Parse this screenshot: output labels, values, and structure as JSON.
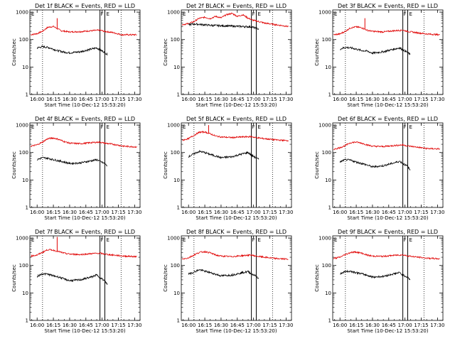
{
  "colors": {
    "events": "#000000",
    "lld": "#e00000",
    "frame": "#000000",
    "background": "#ffffff"
  },
  "shared": {
    "xlabel": "Start Time (10-Dec-12 15:53:20)",
    "ylabel": "Counts/sec",
    "x_ticks": [
      "16:00",
      "16:15",
      "16:30",
      "16:45",
      "17:00",
      "17:15",
      "17:30"
    ],
    "x_tick_minutes": [
      0,
      15,
      30,
      45,
      60,
      75,
      90
    ],
    "y_ticks": [
      "1",
      "10",
      "100",
      "1000"
    ],
    "y_tick_values": [
      1,
      10,
      100,
      1000
    ],
    "xlim_minutes": [
      -6.7,
      95
    ],
    "ylim": [
      1,
      1200
    ],
    "yscale": "log",
    "flag_labels": {
      "e": "E",
      "f": "F"
    }
  },
  "chart_data": [
    {
      "type": "line",
      "title": "Det 1f BLACK = Events, RED = LLD",
      "dotted_at": [
        5,
        77.5
      ],
      "band": [
        58,
        62.5
      ],
      "series": [
        {
          "key": "lld",
          "x": [
            -6,
            0,
            5,
            10,
            15,
            18,
            22,
            30,
            40,
            50,
            58,
            62,
            70,
            78,
            85,
            92
          ],
          "y": [
            150,
            165,
            200,
            280,
            300,
            260,
            210,
            190,
            195,
            210,
            220,
            200,
            180,
            150,
            150,
            150
          ]
        },
        {
          "key": "events",
          "x": [
            0,
            5,
            10,
            15,
            18,
            25,
            30,
            40,
            50,
            55,
            58,
            62,
            65
          ],
          "y": [
            50,
            55,
            52,
            45,
            40,
            35,
            33,
            36,
            45,
            50,
            42,
            35,
            28
          ]
        }
      ],
      "spikes": [
        {
          "series": "lld",
          "x": 18.5,
          "y": 600
        }
      ]
    },
    {
      "type": "line",
      "title": "Det 2f BLACK = Events, RED = LLD",
      "dotted_at": [
        5,
        77.5
      ],
      "band": [
        58,
        62.5
      ],
      "series": [
        {
          "key": "lld",
          "x": [
            -6,
            0,
            5,
            10,
            15,
            20,
            25,
            30,
            35,
            40,
            45,
            50,
            55,
            60,
            70,
            80,
            92
          ],
          "y": [
            350,
            380,
            450,
            600,
            650,
            580,
            700,
            620,
            800,
            900,
            700,
            800,
            600,
            500,
            400,
            350,
            300
          ]
        },
        {
          "key": "events",
          "x": [
            0,
            5,
            10,
            20,
            30,
            40,
            50,
            58,
            62,
            65
          ],
          "y": [
            350,
            370,
            360,
            330,
            320,
            310,
            300,
            290,
            260,
            240
          ]
        }
      ],
      "spikes": []
    },
    {
      "type": "line",
      "title": "Det 3f BLACK = Events, RED = LLD",
      "dotted_at": [
        5,
        77.5
      ],
      "band": [
        58,
        62.5
      ],
      "series": [
        {
          "key": "lld",
          "x": [
            -6,
            0,
            5,
            10,
            15,
            20,
            25,
            30,
            40,
            50,
            58,
            62,
            70,
            80,
            92
          ],
          "y": [
            150,
            160,
            200,
            270,
            290,
            270,
            220,
            200,
            190,
            210,
            220,
            200,
            180,
            160,
            150
          ]
        },
        {
          "key": "events",
          "x": [
            0,
            5,
            10,
            15,
            20,
            25,
            30,
            40,
            50,
            55,
            58,
            62,
            65
          ],
          "y": [
            45,
            52,
            50,
            45,
            40,
            38,
            32,
            36,
            45,
            50,
            42,
            35,
            28
          ]
        }
      ],
      "spikes": [
        {
          "series": "lld",
          "x": 23,
          "y": 600
        }
      ]
    },
    {
      "type": "line",
      "title": "Det 4f BLACK = Events, RED = LLD",
      "dotted_at": [
        5,
        77.5
      ],
      "band": [
        58,
        62.5
      ],
      "series": [
        {
          "key": "lld",
          "x": [
            -6,
            0,
            5,
            10,
            15,
            20,
            25,
            30,
            40,
            50,
            58,
            62,
            70,
            80,
            92
          ],
          "y": [
            170,
            190,
            240,
            320,
            340,
            300,
            250,
            220,
            210,
            230,
            240,
            220,
            200,
            170,
            160
          ]
        },
        {
          "key": "events",
          "x": [
            0,
            5,
            10,
            15,
            20,
            25,
            30,
            40,
            50,
            55,
            58,
            62,
            65
          ],
          "y": [
            55,
            65,
            62,
            55,
            50,
            45,
            40,
            42,
            50,
            55,
            48,
            40,
            32
          ]
        }
      ],
      "spikes": []
    },
    {
      "type": "line",
      "title": "Det 5f BLACK = Events, RED = LLD",
      "dotted_at": [
        5,
        77.5
      ],
      "band": [
        58,
        62.5
      ],
      "series": [
        {
          "key": "lld",
          "x": [
            -6,
            0,
            5,
            10,
            15,
            20,
            25,
            30,
            40,
            50,
            58,
            62,
            70,
            80,
            92
          ],
          "y": [
            280,
            320,
            420,
            550,
            560,
            480,
            400,
            370,
            350,
            370,
            380,
            350,
            320,
            290,
            270
          ]
        },
        {
          "key": "events",
          "x": [
            0,
            5,
            10,
            15,
            20,
            25,
            30,
            40,
            50,
            55,
            58,
            62,
            65
          ],
          "y": [
            70,
            90,
            110,
            100,
            85,
            75,
            65,
            70,
            90,
            100,
            80,
            65,
            55
          ]
        }
      ],
      "spikes": [
        {
          "series": "lld",
          "x": 18.5,
          "y": 1000
        }
      ]
    },
    {
      "type": "line",
      "title": "Det 6f BLACK = Events, RED = LLD",
      "dotted_at": [
        5,
        77.5
      ],
      "band": [
        58,
        62.5
      ],
      "series": [
        {
          "key": "lld",
          "x": [
            -6,
            0,
            5,
            10,
            15,
            20,
            25,
            30,
            40,
            50,
            58,
            62,
            70,
            80,
            92
          ],
          "y": [
            130,
            150,
            180,
            230,
            240,
            220,
            190,
            170,
            165,
            180,
            190,
            175,
            160,
            140,
            135
          ]
        },
        {
          "key": "events",
          "x": [
            0,
            5,
            10,
            15,
            20,
            25,
            30,
            40,
            50,
            55,
            58,
            62,
            65
          ],
          "y": [
            45,
            55,
            52,
            45,
            40,
            35,
            30,
            33,
            42,
            48,
            40,
            32,
            22
          ]
        }
      ],
      "spikes": []
    },
    {
      "type": "line",
      "title": "Det 7f BLACK = Events, RED = LLD",
      "dotted_at": [
        5,
        77.5
      ],
      "band": [
        58,
        62.5
      ],
      "series": [
        {
          "key": "lld",
          "x": [
            -6,
            0,
            5,
            10,
            15,
            20,
            25,
            30,
            40,
            50,
            58,
            62,
            70,
            80,
            92
          ],
          "y": [
            220,
            240,
            300,
            380,
            360,
            320,
            280,
            260,
            250,
            270,
            280,
            260,
            240,
            220,
            210
          ]
        },
        {
          "key": "events",
          "x": [
            0,
            5,
            10,
            15,
            20,
            25,
            30,
            40,
            50,
            55,
            58,
            62,
            65
          ],
          "y": [
            40,
            50,
            48,
            42,
            38,
            32,
            28,
            30,
            38,
            45,
            36,
            28,
            20
          ]
        }
      ],
      "spikes": [
        {
          "series": "lld",
          "x": 18.5,
          "y": 1100
        }
      ]
    },
    {
      "type": "line",
      "title": "Det 8f BLACK = Events, RED = LLD",
      "dotted_at": [
        5,
        77.5
      ],
      "band": [
        58,
        62.5
      ],
      "series": [
        {
          "key": "lld",
          "x": [
            -6,
            0,
            5,
            10,
            15,
            20,
            25,
            30,
            40,
            50,
            58,
            62,
            70,
            80,
            92
          ],
          "y": [
            170,
            190,
            240,
            300,
            320,
            290,
            240,
            220,
            210,
            230,
            240,
            220,
            200,
            180,
            170
          ]
        },
        {
          "key": "events",
          "x": [
            0,
            5,
            10,
            15,
            20,
            25,
            30,
            40,
            50,
            55,
            58,
            62,
            65
          ],
          "y": [
            48,
            58,
            70,
            62,
            55,
            48,
            42,
            45,
            55,
            60,
            50,
            42,
            32
          ]
        }
      ],
      "spikes": []
    },
    {
      "type": "line",
      "title": "Det 9f BLACK = Events, RED = LLD",
      "dotted_at": [
        5,
        77.5
      ],
      "band": [
        58,
        62.5
      ],
      "series": [
        {
          "key": "lld",
          "x": [
            -6,
            0,
            5,
            10,
            15,
            20,
            25,
            30,
            40,
            50,
            58,
            62,
            70,
            80,
            92
          ],
          "y": [
            180,
            200,
            250,
            300,
            310,
            280,
            240,
            220,
            215,
            235,
            245,
            225,
            205,
            185,
            175
          ]
        },
        {
          "key": "events",
          "x": [
            0,
            5,
            10,
            15,
            20,
            25,
            30,
            40,
            50,
            55,
            58,
            62,
            65
          ],
          "y": [
            50,
            60,
            62,
            55,
            50,
            44,
            38,
            40,
            50,
            55,
            45,
            38,
            30
          ]
        }
      ],
      "spikes": []
    }
  ]
}
